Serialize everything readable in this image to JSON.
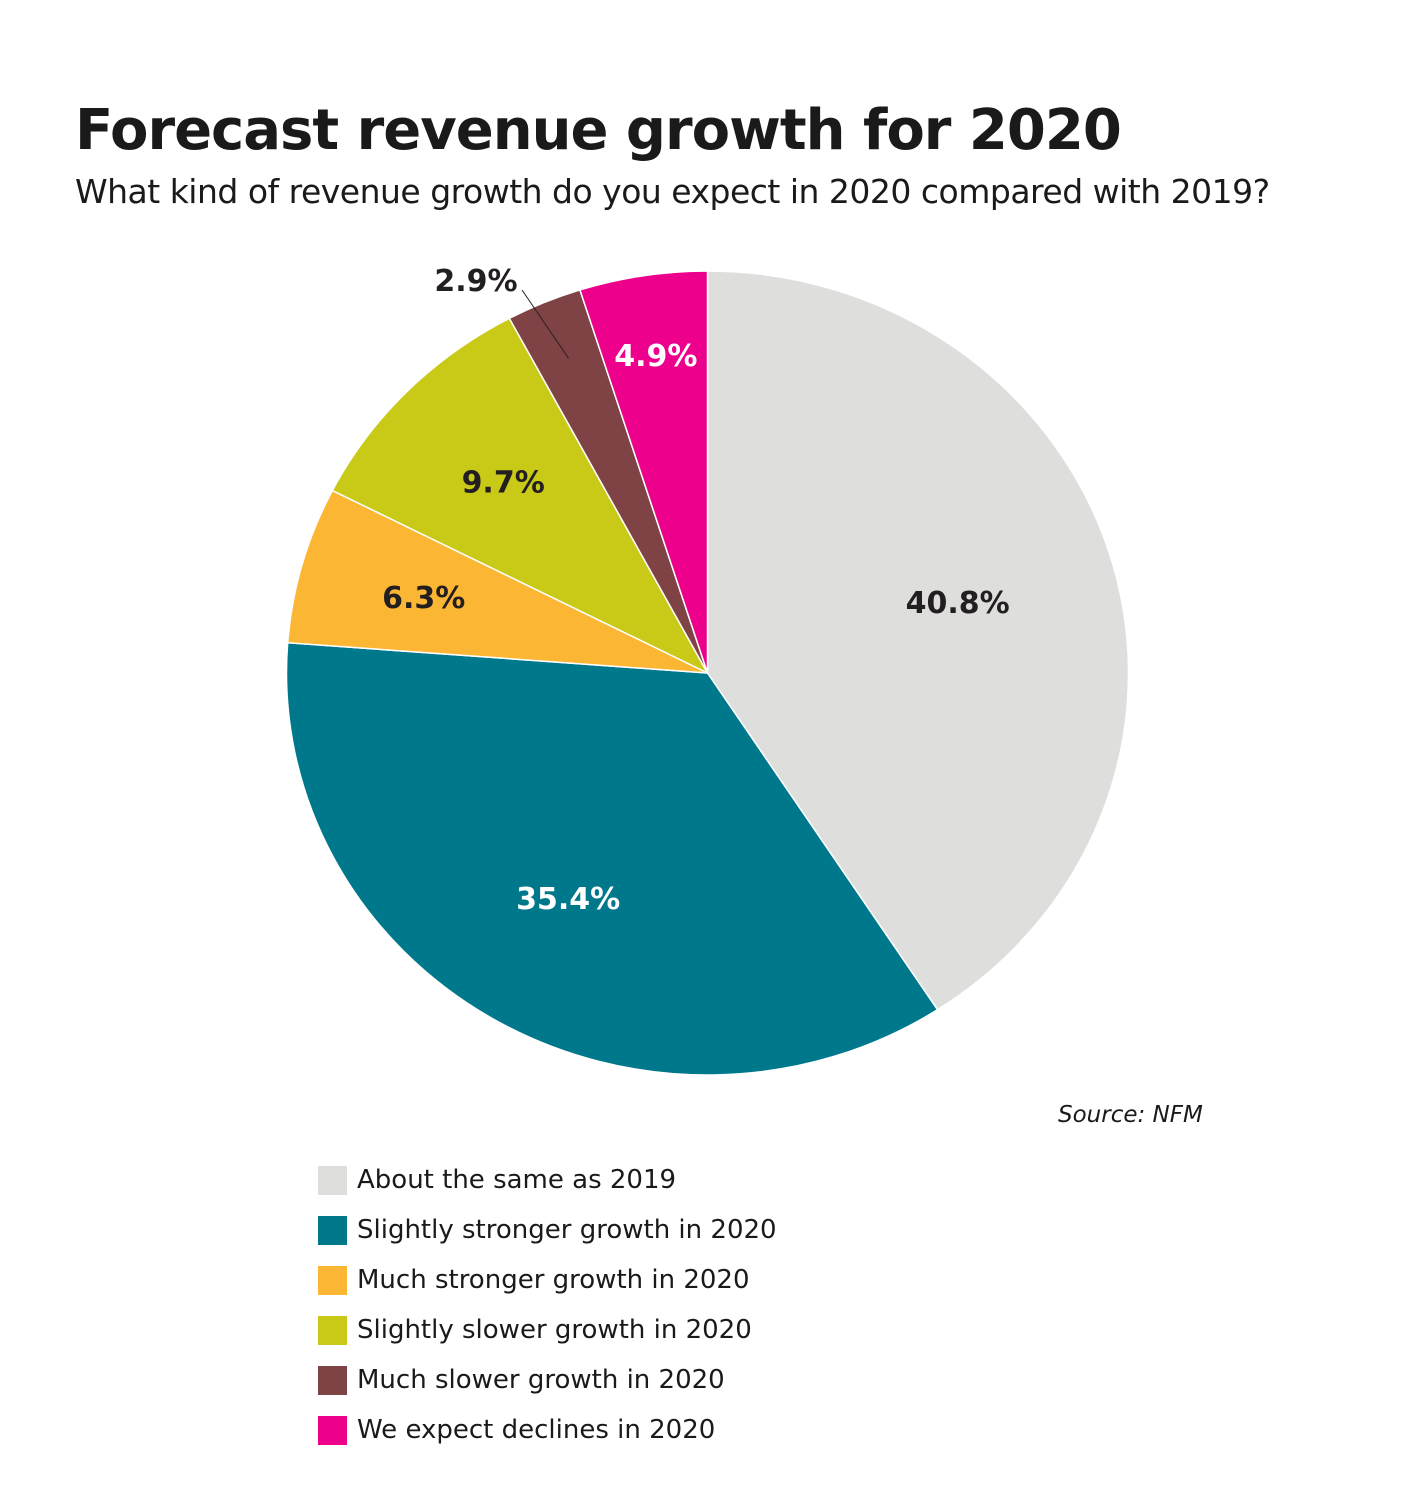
{
  "title": "Forecast revenue growth for 2020",
  "subtitle": "What kind of revenue growth do you expect in 2020 compared with 2019?",
  "source": "Source: NFM",
  "chart_data": {
    "type": "pie",
    "title": "Forecast revenue growth for 2020",
    "start": "12 o'clock, clockwise",
    "legend_position": "bottom",
    "slices": [
      {
        "label": "About the same as 2019",
        "value": 40.8,
        "display": "40.8%",
        "color": "#dededc",
        "text_color": "#231f20"
      },
      {
        "label": "Slightly stronger growth in 2020",
        "value": 35.4,
        "display": "35.4%",
        "color": "#00788c",
        "text_color": "#ffffff"
      },
      {
        "label": "Much stronger growth in 2020",
        "value": 6.3,
        "display": "6.3%",
        "color": "#fbb634",
        "text_color": "#231f20"
      },
      {
        "label": "Slightly slower growth in 2020",
        "value": 9.7,
        "display": "9.7%",
        "color": "#c9ca18",
        "text_color": "#231f20"
      },
      {
        "label": "Much slower growth in 2020",
        "value": 2.9,
        "display": "2.9%",
        "color": "#7f4345",
        "text_color": "#231f20"
      },
      {
        "label": "We expect declines in 2020",
        "value": 4.9,
        "display": "4.9%",
        "color": "#ec008c",
        "text_color": "#ffffff"
      }
    ]
  }
}
